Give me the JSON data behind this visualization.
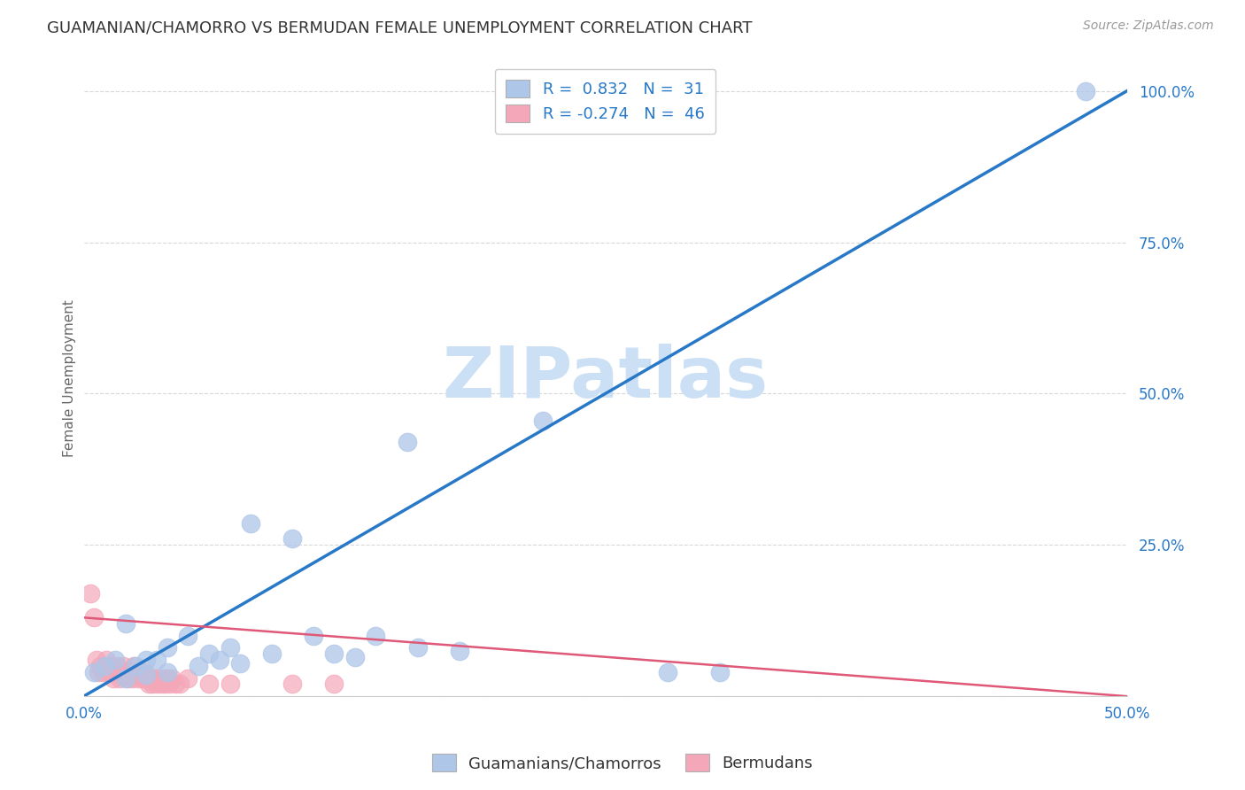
{
  "title": "GUAMANIAN/CHAMORRO VS BERMUDAN FEMALE UNEMPLOYMENT CORRELATION CHART",
  "source": "Source: ZipAtlas.com",
  "ylabel": "Female Unemployment",
  "xlabel": "",
  "xlim": [
    0,
    0.5
  ],
  "ylim": [
    0,
    1.05
  ],
  "yticks": [
    0.0,
    0.25,
    0.5,
    0.75,
    1.0
  ],
  "ytick_labels": [
    "",
    "25.0%",
    "50.0%",
    "75.0%",
    "100.0%"
  ],
  "xticks": [
    0.0,
    0.1,
    0.2,
    0.3,
    0.4,
    0.5
  ],
  "xtick_labels": [
    "0.0%",
    "",
    "",
    "",
    "",
    "50.0%"
  ],
  "legend_items": [
    {
      "color": "#aec6e8",
      "R": "0.832",
      "N": "31"
    },
    {
      "color": "#f4a7b9",
      "R": "-0.274",
      "N": "46"
    }
  ],
  "legend_labels": [
    "Guamanians/Chamorros",
    "Bermudans"
  ],
  "blue_line_x": [
    0.0,
    0.5
  ],
  "blue_line_y": [
    0.0,
    1.0
  ],
  "pink_line_x": [
    0.0,
    0.5
  ],
  "pink_line_y": [
    0.13,
    0.0
  ],
  "blue_scatter_x": [
    0.005,
    0.01,
    0.015,
    0.02,
    0.02,
    0.025,
    0.03,
    0.03,
    0.035,
    0.04,
    0.04,
    0.05,
    0.055,
    0.06,
    0.065,
    0.07,
    0.075,
    0.08,
    0.09,
    0.1,
    0.11,
    0.12,
    0.13,
    0.14,
    0.155,
    0.16,
    0.18,
    0.22,
    0.28,
    0.305,
    0.48
  ],
  "blue_scatter_y": [
    0.04,
    0.05,
    0.06,
    0.03,
    0.12,
    0.05,
    0.06,
    0.035,
    0.06,
    0.04,
    0.08,
    0.1,
    0.05,
    0.07,
    0.06,
    0.08,
    0.055,
    0.285,
    0.07,
    0.26,
    0.1,
    0.07,
    0.065,
    0.1,
    0.42,
    0.08,
    0.075,
    0.455,
    0.04,
    0.04,
    1.0
  ],
  "pink_scatter_x": [
    0.003,
    0.005,
    0.006,
    0.007,
    0.008,
    0.009,
    0.01,
    0.011,
    0.012,
    0.013,
    0.014,
    0.015,
    0.016,
    0.017,
    0.018,
    0.019,
    0.02,
    0.021,
    0.022,
    0.023,
    0.024,
    0.025,
    0.026,
    0.027,
    0.028,
    0.029,
    0.03,
    0.031,
    0.032,
    0.033,
    0.034,
    0.035,
    0.036,
    0.037,
    0.038,
    0.039,
    0.04,
    0.041,
    0.042,
    0.044,
    0.046,
    0.05,
    0.06,
    0.07,
    0.1,
    0.12
  ],
  "pink_scatter_y": [
    0.17,
    0.13,
    0.06,
    0.04,
    0.05,
    0.04,
    0.05,
    0.06,
    0.04,
    0.05,
    0.03,
    0.04,
    0.05,
    0.03,
    0.04,
    0.05,
    0.04,
    0.03,
    0.04,
    0.03,
    0.05,
    0.04,
    0.03,
    0.04,
    0.03,
    0.04,
    0.03,
    0.02,
    0.03,
    0.02,
    0.03,
    0.02,
    0.03,
    0.02,
    0.03,
    0.02,
    0.03,
    0.02,
    0.03,
    0.02,
    0.02,
    0.03,
    0.02,
    0.02,
    0.02,
    0.02
  ],
  "blue_color": "#aec6e8",
  "pink_color": "#f4a7b9",
  "blue_line_color": "#2878c8",
  "pink_line_color": "#e05878",
  "background_color": "#ffffff",
  "grid_color": "#d8d8d8",
  "watermark": "ZIPatlas",
  "watermark_color": "#cce0f5",
  "title_fontsize": 13,
  "axis_label_fontsize": 11,
  "tick_fontsize": 12,
  "source_fontsize": 10
}
